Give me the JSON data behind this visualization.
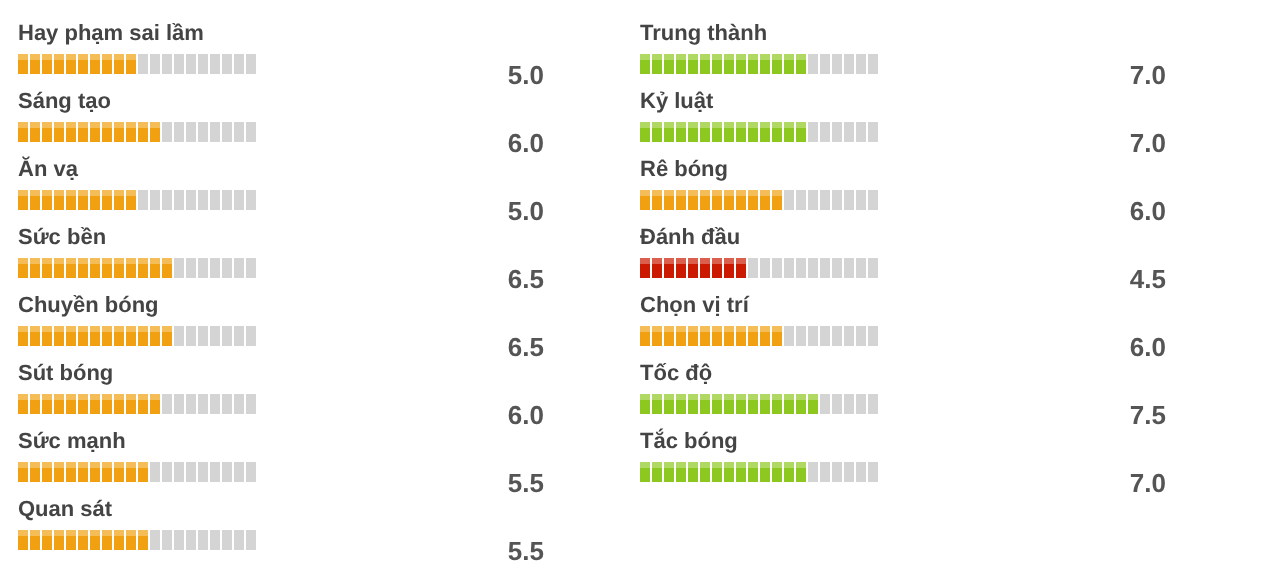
{
  "chart_data": [
    {
      "type": "bar",
      "orientation": "horizontal",
      "categories": [
        "Hay phạm sai lầm",
        "Sáng tạo",
        "Ăn vạ",
        "Sức bền",
        "Chuyền bóng",
        "Sút bóng",
        "Sức mạnh",
        "Quan sát"
      ],
      "values": [
        5.0,
        6.0,
        5.0,
        6.5,
        6.5,
        6.0,
        5.5,
        5.5
      ],
      "colors": [
        "#f0a010",
        "#f0a010",
        "#f0a010",
        "#f0a010",
        "#f0a010",
        "#f0a010",
        "#f0a010",
        "#f0a010"
      ],
      "xlim": [
        0,
        10
      ],
      "tick_labels": false,
      "value_labels": [
        "5.0",
        "6.0",
        "5.0",
        "6.5",
        "6.5",
        "6.0",
        "5.5",
        "5.5"
      ]
    },
    {
      "type": "bar",
      "orientation": "horizontal",
      "categories": [
        "Trung thành",
        "Kỷ luật",
        "Rê bóng",
        "Đánh đầu",
        "Chọn vị trí",
        "Tốc độ",
        "Tắc bóng"
      ],
      "values": [
        7.0,
        7.0,
        6.0,
        4.5,
        6.0,
        7.5,
        7.0
      ],
      "colors": [
        "#8cc820",
        "#8cc820",
        "#f0a010",
        "#cc1a00",
        "#f0a010",
        "#8cc820",
        "#8cc820"
      ],
      "xlim": [
        0,
        10
      ],
      "tick_labels": false,
      "value_labels": [
        "7.0",
        "7.0",
        "6.0",
        "4.5",
        "6.0",
        "7.5",
        "7.0"
      ]
    }
  ]
}
